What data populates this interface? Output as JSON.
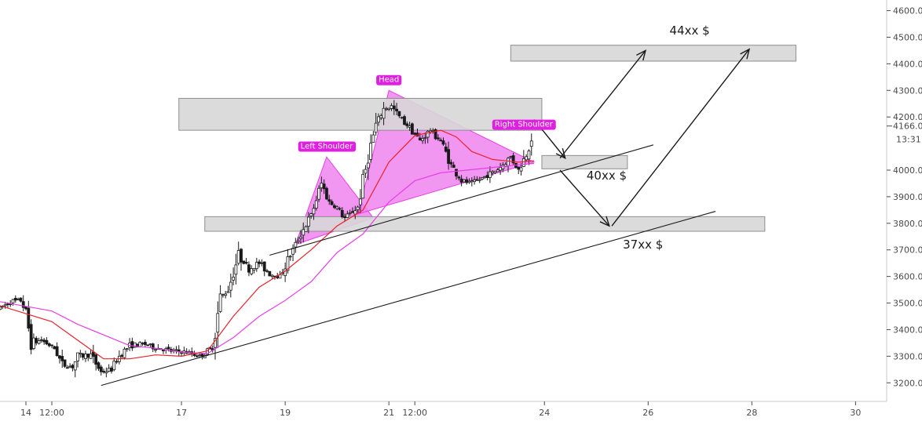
{
  "chart_data": {
    "type": "candlestick",
    "title": "",
    "xlabel": "",
    "ylabel": "",
    "x_ticks": [
      {
        "label": "14",
        "x": 0
      },
      {
        "label": "12:00",
        "x": 0.5
      },
      {
        "label": "17",
        "x": 3
      },
      {
        "label": "19",
        "x": 5
      },
      {
        "label": "21",
        "x": 7
      },
      {
        "label": "12:00",
        "x": 7.5
      },
      {
        "label": "24",
        "x": 10
      },
      {
        "label": "26",
        "x": 12
      },
      {
        "label": "28",
        "x": 14
      },
      {
        "label": "30",
        "x": 16
      }
    ],
    "y_ticks": [
      3200,
      3300,
      3400,
      3500,
      3600,
      3700,
      3800,
      3900,
      4000,
      4200,
      4300,
      4400,
      4500,
      4600
    ],
    "y_tick_suffix": ".0",
    "ylim": [
      3130,
      4640
    ],
    "xlim": [
      -0.5,
      16.6
    ],
    "last_price": {
      "value": 4166.0,
      "label": "4166.0",
      "countdown": "13:31"
    },
    "price_path": [
      [
        -0.5,
        3480
      ],
      [
        -0.3,
        3505
      ],
      [
        -0.1,
        3510
      ],
      [
        0.02,
        3460
      ],
      [
        0.08,
        3350
      ],
      [
        0.3,
        3360
      ],
      [
        0.55,
        3330
      ],
      [
        0.7,
        3270
      ],
      [
        0.9,
        3260
      ],
      [
        1.0,
        3300
      ],
      [
        1.25,
        3305
      ],
      [
        1.45,
        3240
      ],
      [
        1.65,
        3250
      ],
      [
        1.8,
        3300
      ],
      [
        2.0,
        3340
      ],
      [
        2.3,
        3345
      ],
      [
        2.55,
        3330
      ],
      [
        2.8,
        3320
      ],
      [
        3.1,
        3315
      ],
      [
        3.35,
        3300
      ],
      [
        3.6,
        3330
      ],
      [
        3.75,
        3520
      ],
      [
        3.9,
        3550
      ],
      [
        4.1,
        3680
      ],
      [
        4.3,
        3630
      ],
      [
        4.5,
        3650
      ],
      [
        4.7,
        3610
      ],
      [
        4.9,
        3600
      ],
      [
        5.1,
        3680
      ],
      [
        5.3,
        3760
      ],
      [
        5.5,
        3830
      ],
      [
        5.7,
        3950
      ],
      [
        5.85,
        3880
      ],
      [
        6.0,
        3860
      ],
      [
        6.15,
        3820
      ],
      [
        6.4,
        3860
      ],
      [
        6.6,
        4050
      ],
      [
        6.75,
        4170
      ],
      [
        6.9,
        4230
      ],
      [
        7.05,
        4240
      ],
      [
        7.2,
        4200
      ],
      [
        7.4,
        4160
      ],
      [
        7.6,
        4110
      ],
      [
        7.8,
        4150
      ],
      [
        8.0,
        4110
      ],
      [
        8.2,
        4020
      ],
      [
        8.4,
        3960
      ],
      [
        8.6,
        3950
      ],
      [
        8.8,
        3970
      ],
      [
        9.0,
        3990
      ],
      [
        9.2,
        4020
      ],
      [
        9.35,
        4050
      ],
      [
        9.5,
        4000
      ],
      [
        9.65,
        4060
      ],
      [
        9.8,
        4166
      ]
    ],
    "ema_red": [
      [
        -0.5,
        3490
      ],
      [
        0.5,
        3430
      ],
      [
        1.0,
        3360
      ],
      [
        1.5,
        3290
      ],
      [
        2.0,
        3290
      ],
      [
        2.5,
        3305
      ],
      [
        3.0,
        3300
      ],
      [
        3.5,
        3320
      ],
      [
        4.0,
        3450
      ],
      [
        4.5,
        3560
      ],
      [
        5.0,
        3620
      ],
      [
        5.5,
        3700
      ],
      [
        6.0,
        3790
      ],
      [
        6.5,
        3850
      ],
      [
        7.0,
        4030
      ],
      [
        7.5,
        4130
      ],
      [
        8.0,
        4150
      ],
      [
        8.3,
        4125
      ],
      [
        8.6,
        4070
      ],
      [
        9.0,
        4040
      ],
      [
        9.5,
        4030
      ],
      [
        9.8,
        4035
      ]
    ],
    "ema_magenta": [
      [
        -0.5,
        3505
      ],
      [
        0.5,
        3470
      ],
      [
        1.0,
        3420
      ],
      [
        1.5,
        3380
      ],
      [
        2.0,
        3340
      ],
      [
        2.5,
        3330
      ],
      [
        3.0,
        3315
      ],
      [
        3.5,
        3310
      ],
      [
        4.0,
        3370
      ],
      [
        4.5,
        3450
      ],
      [
        5.0,
        3510
      ],
      [
        5.5,
        3580
      ],
      [
        6.0,
        3690
      ],
      [
        6.5,
        3760
      ],
      [
        7.0,
        3880
      ],
      [
        7.5,
        3960
      ],
      [
        8.0,
        3990
      ],
      [
        8.5,
        4000
      ],
      [
        9.0,
        4010
      ],
      [
        9.5,
        4020
      ],
      [
        9.8,
        4025
      ]
    ],
    "zones": [
      {
        "x0": 3.45,
        "x1": 14.25,
        "y0": 3770,
        "y1": 3825
      },
      {
        "x0": 2.95,
        "x1": 9.95,
        "y0": 4150,
        "y1": 4270
      },
      {
        "x0": 9.95,
        "x1": 11.6,
        "y0": 4005,
        "y1": 4055
      },
      {
        "x0": 9.35,
        "x1": 14.85,
        "y0": 4410,
        "y1": 4470
      }
    ],
    "trendlines": [
      {
        "x0": 1.45,
        "y0": 3190,
        "x1": 13.3,
        "y1": 3845
      },
      {
        "x0": 4.7,
        "y0": 3680,
        "x1": 12.1,
        "y1": 4095
      }
    ],
    "pattern_triangles": [
      [
        [
          5.2,
          3720
        ],
        [
          5.8,
          4050
        ],
        [
          6.7,
          3820
        ]
      ],
      [
        [
          6.4,
          3835
        ],
        [
          7.0,
          4300
        ],
        [
          9.8,
          4030
        ]
      ]
    ],
    "arrows": [
      {
        "x0": 9.8,
        "y0": 4190,
        "x1": 10.4,
        "y1": 4045
      },
      {
        "x0": 10.3,
        "y0": 4045,
        "x1": 11.95,
        "y1": 4450
      },
      {
        "x0": 10.3,
        "y0": 4000,
        "x1": 11.25,
        "y1": 3790
      },
      {
        "x0": 11.3,
        "y0": 3790,
        "x1": 13.95,
        "y1": 4455
      }
    ],
    "annotations": [
      {
        "text": "44xx $",
        "x": 12.8,
        "y": 4510
      },
      {
        "text": "40xx $",
        "x": 11.2,
        "y": 3965
      },
      {
        "text": "37xx $",
        "x": 11.9,
        "y": 3705
      }
    ],
    "pattern_labels": [
      {
        "text": "Left Shoulder",
        "x": 5.8,
        "y": 4093
      },
      {
        "text": "Head",
        "x": 7.0,
        "y": 4343
      },
      {
        "text": "Right Shoulder",
        "x": 9.6,
        "y": 4175
      }
    ],
    "colors": {
      "candle": "#1a1a1a",
      "ema_red": "#e8232a",
      "ema_magenta": "#e640e6",
      "pattern_fill": "#ef84ef",
      "pattern_label_bg": "#e020e0",
      "zone_fill": "#d7d7d7",
      "zone_border": "#8e8e8e",
      "line": "#1a1a1a"
    }
  }
}
